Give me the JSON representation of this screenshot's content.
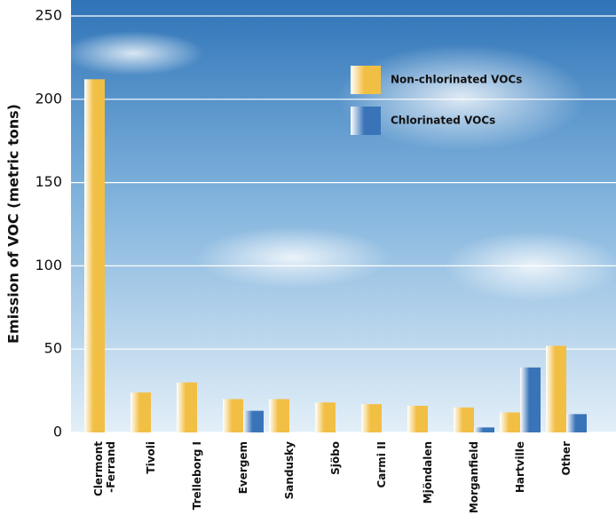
{
  "chart_data": {
    "type": "bar",
    "y_label": "Emission of VOC (metric tons)",
    "categories": [
      "Clermont\n-Ferrand",
      "Tivoli",
      "Trelleborg I",
      "Evergem",
      "Sandusky",
      "Sjöbo",
      "Carmi II",
      "Mjöndalen",
      "Morganfield",
      "Hartville",
      "Other"
    ],
    "series": [
      {
        "name": "Non-chlorinated VOCs",
        "color": "#f2bf45",
        "values": [
          212,
          24,
          30,
          20,
          20,
          18,
          17,
          16,
          15,
          12,
          52
        ]
      },
      {
        "name": "Chlorinated VOCs",
        "color": "#3a74b8",
        "values": [
          null,
          null,
          null,
          13,
          null,
          null,
          null,
          null,
          3,
          39,
          11
        ]
      }
    ],
    "ylim": [
      0,
      250
    ],
    "yticks": [
      0,
      50,
      100,
      150,
      200,
      250
    ],
    "grid": true
  }
}
